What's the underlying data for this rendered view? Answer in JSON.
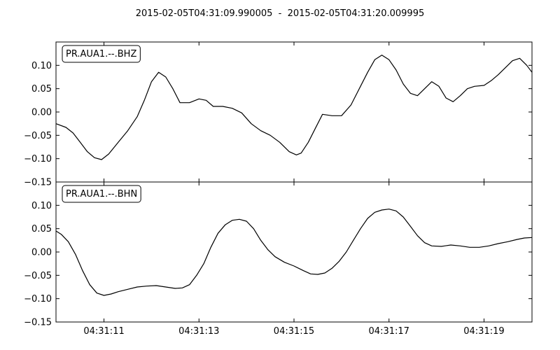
{
  "figure": {
    "title": "2015-02-05T04:31:09.990005  -  2015-02-05T04:31:20.009995"
  },
  "chart_data": [
    {
      "type": "line",
      "title": "2015-02-05T04:31:09.990005  -  2015-02-05T04:31:20.009995",
      "legend": "PR.AUA1.--.BHZ",
      "legend_position": "top-left",
      "xlim": [
        "04:31:09.990",
        "04:31:20.010"
      ],
      "ylim": [
        -0.15,
        0.15
      ],
      "yticks": [
        "0.10",
        "0.05",
        "0.00",
        "−0.05",
        "−0.10",
        "−0.15"
      ],
      "xticks": [
        "04:31:11",
        "04:31:13",
        "04:31:15",
        "04:31:17",
        "04:31:19"
      ],
      "grid": false,
      "color": "#000000",
      "series": [
        {
          "x": [
            "04:31:09.990",
            "04:31:10.200",
            "04:31:10.350",
            "04:31:10.500",
            "04:31:10.650",
            "04:31:10.800",
            "04:31:10.950",
            "04:31:11.100",
            "04:31:11.300",
            "04:31:11.500",
            "04:31:11.700",
            "04:31:11.850",
            "04:31:12.000",
            "04:31:12.150",
            "04:31:12.300",
            "04:31:12.450",
            "04:31:12.600",
            "04:31:12.800",
            "04:31:13.000",
            "04:31:13.150",
            "04:31:13.300",
            "04:31:13.500",
            "04:31:13.700",
            "04:31:13.900",
            "04:31:14.100",
            "04:31:14.300",
            "04:31:14.500",
            "04:31:14.700",
            "04:31:14.900",
            "04:31:15.050",
            "04:31:15.150",
            "04:31:15.300",
            "04:31:15.450",
            "04:31:15.600",
            "04:31:15.800",
            "04:31:16.000",
            "04:31:16.200",
            "04:31:16.400",
            "04:31:16.550",
            "04:31:16.700",
            "04:31:16.850",
            "04:31:17.000",
            "04:31:17.150",
            "04:31:17.300",
            "04:31:17.450",
            "04:31:17.600",
            "04:31:17.750",
            "04:31:17.900",
            "04:31:18.050",
            "04:31:18.200",
            "04:31:18.350",
            "04:31:18.500",
            "04:31:18.650",
            "04:31:18.800",
            "04:31:19.000",
            "04:31:19.150",
            "04:31:19.300",
            "04:31:19.450",
            "04:31:19.600",
            "04:31:19.750",
            "04:31:19.900",
            "04:31:20.010"
          ],
          "y": [
            -0.025,
            -0.033,
            -0.045,
            -0.065,
            -0.085,
            -0.098,
            -0.102,
            -0.09,
            -0.065,
            -0.04,
            -0.01,
            0.025,
            0.065,
            0.085,
            0.075,
            0.05,
            0.02,
            0.02,
            0.028,
            0.025,
            0.012,
            0.012,
            0.008,
            -0.002,
            -0.025,
            -0.04,
            -0.05,
            -0.065,
            -0.085,
            -0.092,
            -0.088,
            -0.065,
            -0.035,
            -0.005,
            -0.008,
            -0.008,
            0.015,
            0.055,
            0.085,
            0.112,
            0.122,
            0.112,
            0.09,
            0.06,
            0.04,
            0.035,
            0.05,
            0.065,
            0.055,
            0.03,
            0.022,
            0.035,
            0.05,
            0.055,
            0.057,
            0.067,
            0.08,
            0.095,
            0.11,
            0.115,
            0.1,
            0.085
          ]
        }
      ]
    },
    {
      "type": "line",
      "legend": "PR.AUA1.--.BHN",
      "legend_position": "top-left",
      "xlim": [
        "04:31:09.990",
        "04:31:20.010"
      ],
      "ylim": [
        -0.15,
        0.15
      ],
      "yticks": [
        "0.10",
        "0.05",
        "0.00",
        "−0.05",
        "−0.10",
        "−0.15"
      ],
      "xticks": [
        "04:31:11",
        "04:31:13",
        "04:31:15",
        "04:31:17",
        "04:31:19"
      ],
      "grid": false,
      "color": "#000000",
      "series": [
        {
          "x": [
            "04:31:09.990",
            "04:31:10.100",
            "04:31:10.250",
            "04:31:10.400",
            "04:31:10.550",
            "04:31:10.700",
            "04:31:10.850",
            "04:31:11.000",
            "04:31:11.150",
            "04:31:11.300",
            "04:31:11.500",
            "04:31:11.700",
            "04:31:11.900",
            "04:31:12.100",
            "04:31:12.300",
            "04:31:12.500",
            "04:31:12.650",
            "04:31:12.800",
            "04:31:12.950",
            "04:31:13.100",
            "04:31:13.250",
            "04:31:13.400",
            "04:31:13.550",
            "04:31:13.700",
            "04:31:13.850",
            "04:31:14.000",
            "04:31:14.150",
            "04:31:14.300",
            "04:31:14.450",
            "04:31:14.600",
            "04:31:14.800",
            "04:31:15.000",
            "04:31:15.200",
            "04:31:15.350",
            "04:31:15.500",
            "04:31:15.650",
            "04:31:15.800",
            "04:31:15.950",
            "04:31:16.100",
            "04:31:16.250",
            "04:31:16.400",
            "04:31:16.550",
            "04:31:16.700",
            "04:31:16.850",
            "04:31:17.000",
            "04:31:17.150",
            "04:31:17.300",
            "04:31:17.450",
            "04:31:17.600",
            "04:31:17.750",
            "04:31:17.900",
            "04:31:18.100",
            "04:31:18.300",
            "04:31:18.500",
            "04:31:18.700",
            "04:31:18.900",
            "04:31:19.100",
            "04:31:19.300",
            "04:31:19.500",
            "04:31:19.700",
            "04:31:19.850",
            "04:31:20.010"
          ],
          "y": [
            0.045,
            0.038,
            0.022,
            -0.005,
            -0.04,
            -0.07,
            -0.088,
            -0.093,
            -0.09,
            -0.085,
            -0.08,
            -0.075,
            -0.073,
            -0.072,
            -0.075,
            -0.078,
            -0.077,
            -0.07,
            -0.05,
            -0.025,
            0.01,
            0.04,
            0.058,
            0.068,
            0.07,
            0.066,
            0.05,
            0.025,
            0.005,
            -0.01,
            -0.022,
            -0.03,
            -0.04,
            -0.047,
            -0.048,
            -0.045,
            -0.035,
            -0.02,
            0.0,
            0.025,
            0.05,
            0.072,
            0.085,
            0.09,
            0.092,
            0.088,
            0.075,
            0.055,
            0.035,
            0.02,
            0.013,
            0.012,
            0.015,
            0.013,
            0.01,
            0.01,
            0.013,
            0.018,
            0.022,
            0.027,
            0.03,
            0.031
          ]
        }
      ]
    }
  ]
}
